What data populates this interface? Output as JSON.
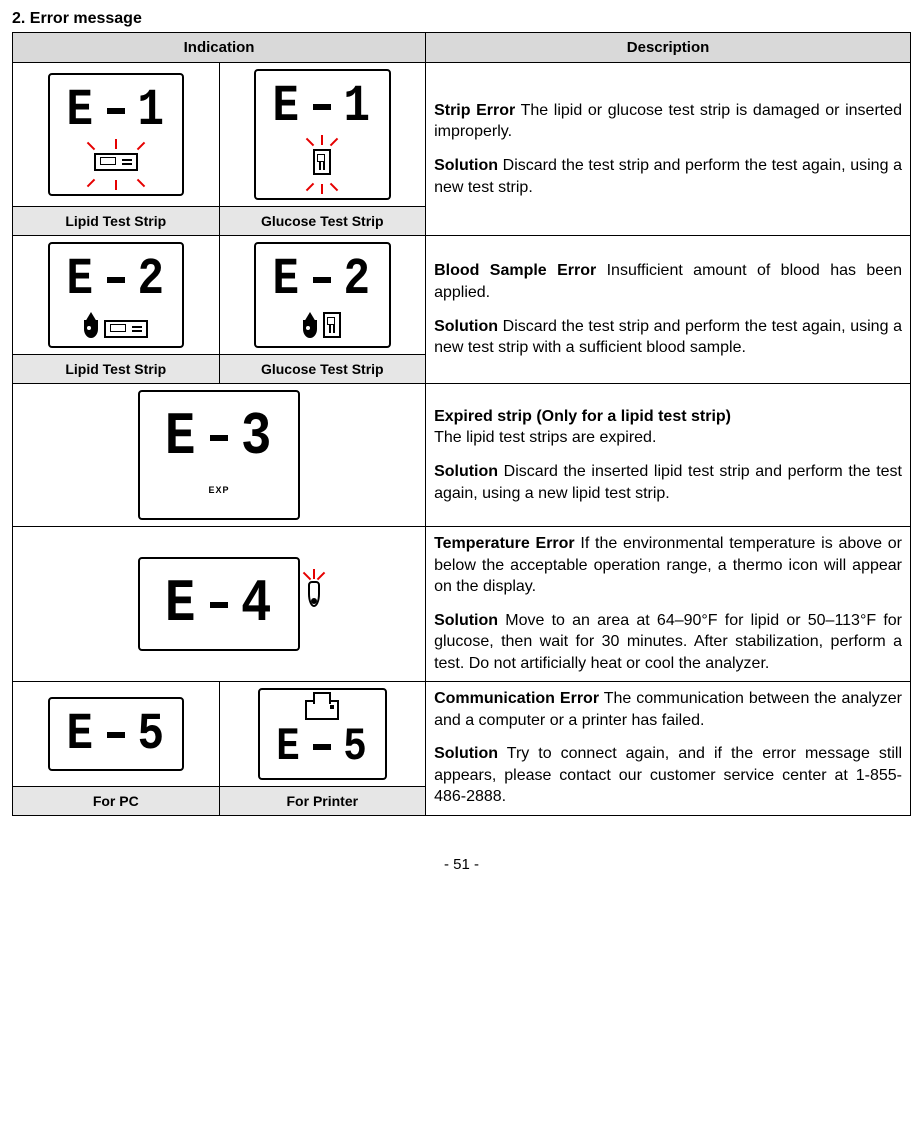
{
  "section_title": "2. Error message",
  "headers": {
    "indication": "Indication",
    "description": "Description"
  },
  "rows": [
    {
      "id": "e1",
      "code": "E - 1",
      "sub_a": "Lipid Test Strip",
      "sub_b": "Glucose Test Strip",
      "lcd_a": {
        "text": "E-1",
        "icons": [
          "rays",
          "strip-h"
        ],
        "rays_color": "#e50000"
      },
      "lcd_b": {
        "text": "E-1",
        "icons": [
          "rays",
          "strip-v"
        ],
        "rays_color": "#e50000"
      },
      "title": "Strip Error",
      "body": "The lipid or glucose test strip is damaged or inserted improperly.",
      "solution": "Discard the test strip and perform the test again, using a new test strip."
    },
    {
      "id": "e2",
      "code": "E - 2",
      "sub_a": "Lipid Test Strip",
      "sub_b": "Glucose Test Strip",
      "lcd_a": {
        "text": "E-2",
        "icons": [
          "drop",
          "strip-h"
        ]
      },
      "lcd_b": {
        "text": "E-2",
        "icons": [
          "drop",
          "strip-v"
        ]
      },
      "title": "Blood Sample Error",
      "body": "Insufficient amount of blood has been applied.",
      "solution": "Discard the test strip and perform the test again, using a new test strip with a sufficient blood sample."
    },
    {
      "id": "e3",
      "code": "E - 3",
      "lcd_a": {
        "text": "E-3",
        "icons": [
          "exp"
        ],
        "exp_text": "EXP"
      },
      "title": "Expired strip (Only for a lipid test strip)",
      "body_after_title": "The lipid test strips are expired.",
      "solution": "Discard the inserted lipid test strip and perform the test again, using a new lipid test strip."
    },
    {
      "id": "e4",
      "code": "E - 4",
      "lcd_a": {
        "text": "E-4",
        "icons": [
          "thermo-rays"
        ],
        "rays_color": "#e50000"
      },
      "title": "Temperature Error",
      "body": "If the environmental temperature is above or below the acceptable operation range, a thermo icon will appear on the display.",
      "solution": "Move to an area at 64–90°F for lipid or 50–113°F for glucose, then wait for 30 minutes. After stabilization, perform a test. Do not artificially heat or cool the analyzer."
    },
    {
      "id": "e5",
      "code": "E - 5",
      "sub_a": "For PC",
      "sub_b": "For Printer",
      "lcd_a": {
        "text": "E-5",
        "icons": []
      },
      "lcd_b": {
        "text": "E-5",
        "icons": [
          "printer"
        ]
      },
      "title": "Communication Error",
      "body": "The communication between the analyzer and a computer or a printer has failed.",
      "solution": "Try to connect again, and if the error message still appears, please contact our customer service center at 1-855-486-2888."
    }
  ],
  "page_number": "- 51 -",
  "colors": {
    "header_bg": "#d9d9d9",
    "sublabel_bg": "#e6e6e6",
    "ray": "#e50000",
    "border": "#000000",
    "text": "#000000"
  }
}
